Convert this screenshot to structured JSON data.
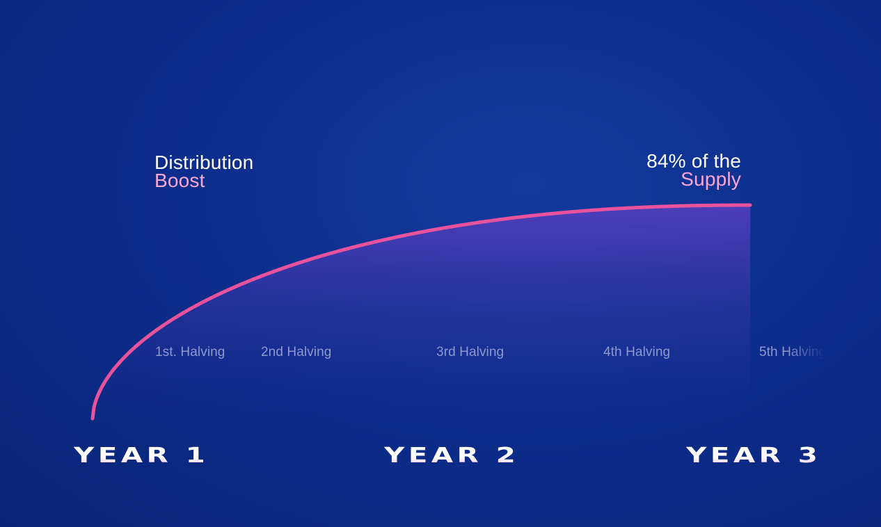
{
  "colors": {
    "curve": "#e9539b",
    "accent_text": "#f6a8d4",
    "fill_top": "#5a3fc0"
  },
  "callouts": {
    "left": {
      "line1": "Distribution",
      "line2": "Boost"
    },
    "right": {
      "line1": "84% of the",
      "line2": "Supply"
    }
  },
  "years": [
    "YEAR 1",
    "YEAR 2",
    "YEAR 3"
  ],
  "chart_data": {
    "type": "area",
    "title": "",
    "xlabel": "",
    "ylabel": "",
    "curve": "concave cumulative supply curve rising steeply then flattening",
    "halvings": [
      {
        "label": "1st. Halving",
        "year": 0.17
      },
      {
        "label": "2nd Halving",
        "year": 0.52
      },
      {
        "label": "3rd Halving",
        "year": 1.09
      },
      {
        "label": "4th Halving",
        "year": 1.63
      },
      {
        "label": "5th Halving",
        "year": 2.15
      }
    ],
    "markers": [
      {
        "year": 0.17,
        "label": "Distribution Boost"
      },
      {
        "year": 2.15,
        "label": "84% of the Supply",
        "value_percent": 84
      }
    ],
    "x_ticks": [
      "YEAR 1",
      "YEAR 2",
      "YEAR 3"
    ],
    "supply_percent_at_end": 84
  }
}
